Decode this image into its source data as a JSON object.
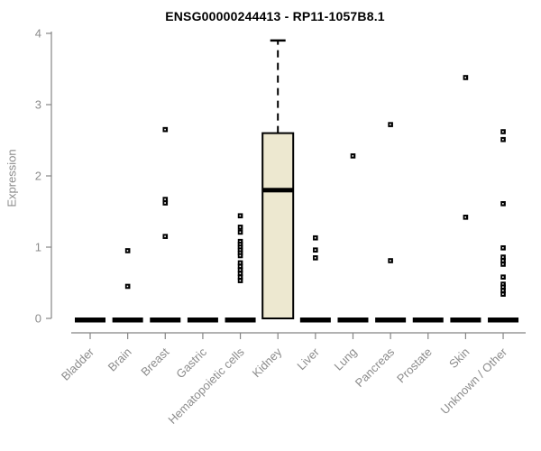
{
  "chart_data": {
    "type": "boxplot",
    "title": "ENSG00000244413 - RP11-1057B8.1",
    "ylabel": "Expression",
    "xlabel": "",
    "ylim": [
      0,
      4
    ],
    "yticks": [
      0,
      1,
      2,
      3,
      4
    ],
    "grid": false,
    "legend": "none",
    "categories": [
      "Bladder",
      "Brain",
      "Breast",
      "Gastric",
      "Hematopoietic cells",
      "Kidney",
      "Liver",
      "Lung",
      "Pancreas",
      "Prostate",
      "Skin",
      "Unknown / Other"
    ],
    "boxes": [
      {
        "category": "Bladder",
        "whisker_low": 0,
        "q1": 0,
        "median": 0,
        "q3": 0,
        "whisker_high": 0,
        "outliers": []
      },
      {
        "category": "Brain",
        "whisker_low": 0,
        "q1": 0,
        "median": 0,
        "q3": 0,
        "whisker_high": 0,
        "outliers": [
          0.95,
          0.45
        ]
      },
      {
        "category": "Breast",
        "whisker_low": 0,
        "q1": 0,
        "median": 0,
        "q3": 0,
        "whisker_high": 0,
        "outliers": [
          2.65,
          1.67,
          1.62,
          1.15
        ]
      },
      {
        "category": "Gastric",
        "whisker_low": 0,
        "q1": 0,
        "median": 0,
        "q3": 0,
        "whisker_high": 0,
        "outliers": []
      },
      {
        "category": "Hematopoietic cells",
        "whisker_low": 0,
        "q1": 0,
        "median": 0,
        "q3": 0,
        "whisker_high": 0,
        "outliers": [
          1.44,
          1.28,
          1.21,
          1.08,
          1.04,
          1.0,
          0.96,
          0.92,
          0.88,
          0.78,
          0.73,
          0.68,
          0.63,
          0.58,
          0.53
        ]
      },
      {
        "category": "Kidney",
        "whisker_low": 0,
        "q1": 0,
        "median": 1.8,
        "q3": 2.6,
        "whisker_high": 3.9,
        "outliers": []
      },
      {
        "category": "Liver",
        "whisker_low": 0,
        "q1": 0,
        "median": 0,
        "q3": 0,
        "whisker_high": 0,
        "outliers": [
          1.13,
          0.96,
          0.85
        ]
      },
      {
        "category": "Lung",
        "whisker_low": 0,
        "q1": 0,
        "median": 0,
        "q3": 0,
        "whisker_high": 0,
        "outliers": [
          2.28
        ]
      },
      {
        "category": "Pancreas",
        "whisker_low": 0,
        "q1": 0,
        "median": 0,
        "q3": 0,
        "whisker_high": 0,
        "outliers": [
          2.72,
          0.81
        ]
      },
      {
        "category": "Prostate",
        "whisker_low": 0,
        "q1": 0,
        "median": 0,
        "q3": 0,
        "whisker_high": 0,
        "outliers": []
      },
      {
        "category": "Skin",
        "whisker_low": 0,
        "q1": 0,
        "median": 0,
        "q3": 0,
        "whisker_high": 0,
        "outliers": [
          3.38,
          1.42
        ]
      },
      {
        "category": "Unknown / Other",
        "whisker_low": 0,
        "q1": 0,
        "median": 0,
        "q3": 0,
        "whisker_high": 0,
        "outliers": [
          2.62,
          2.51,
          1.61,
          0.99,
          0.86,
          0.81,
          0.76,
          0.58,
          0.48,
          0.44,
          0.39,
          0.34
        ]
      }
    ],
    "colors": {
      "box_fill": "#EDE8D0",
      "box_border": "#000000",
      "median": "#000000",
      "outlier": "#000000",
      "axis": "#858585",
      "tick_label": "#8C8C8C",
      "title": "#000000",
      "background": "#FFFFFF"
    }
  }
}
